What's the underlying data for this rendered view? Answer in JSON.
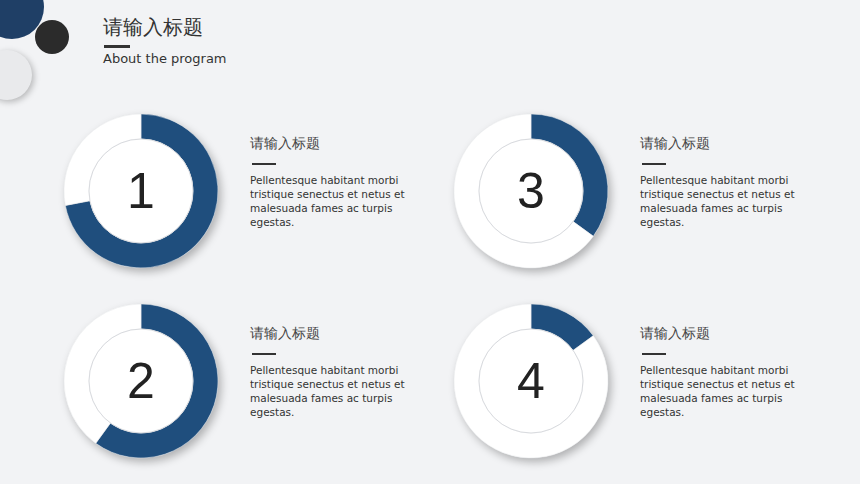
{
  "slide": {
    "title": "请输入标题",
    "subtitle": "About the program",
    "items": [
      {
        "title": "请输入标题",
        "text": "Pellentesque habitant morbi tristique senectus et netus et malesuada fames ac turpis egestas."
      },
      {
        "title": "请输入标题",
        "text": "Pellentesque habitant morbi tristique senectus et netus et malesuada fames ac turpis egestas."
      },
      {
        "title": "请输入标题",
        "text": "Pellentesque habitant morbi tristique senectus et netus et malesuada fames ac turpis egestas."
      },
      {
        "title": "请输入标题",
        "text": "Pellentesque habitant morbi tristique senectus et netus et malesuada fames ac turpis egestas."
      }
    ]
  },
  "chart_data": [
    {
      "type": "pie",
      "annotations": [
        "1"
      ],
      "values": [
        72,
        28
      ],
      "colors": [
        "#1f4e7d",
        "#ffffff"
      ]
    },
    {
      "type": "pie",
      "annotations": [
        "2"
      ],
      "values": [
        60,
        40
      ],
      "colors": [
        "#1f4e7d",
        "#ffffff"
      ]
    },
    {
      "type": "pie",
      "annotations": [
        "3"
      ],
      "values": [
        35,
        65
      ],
      "colors": [
        "#1f4e7d",
        "#ffffff"
      ]
    },
    {
      "type": "pie",
      "annotations": [
        "4"
      ],
      "values": [
        15,
        85
      ],
      "colors": [
        "#1f4e7d",
        "#ffffff"
      ]
    }
  ]
}
